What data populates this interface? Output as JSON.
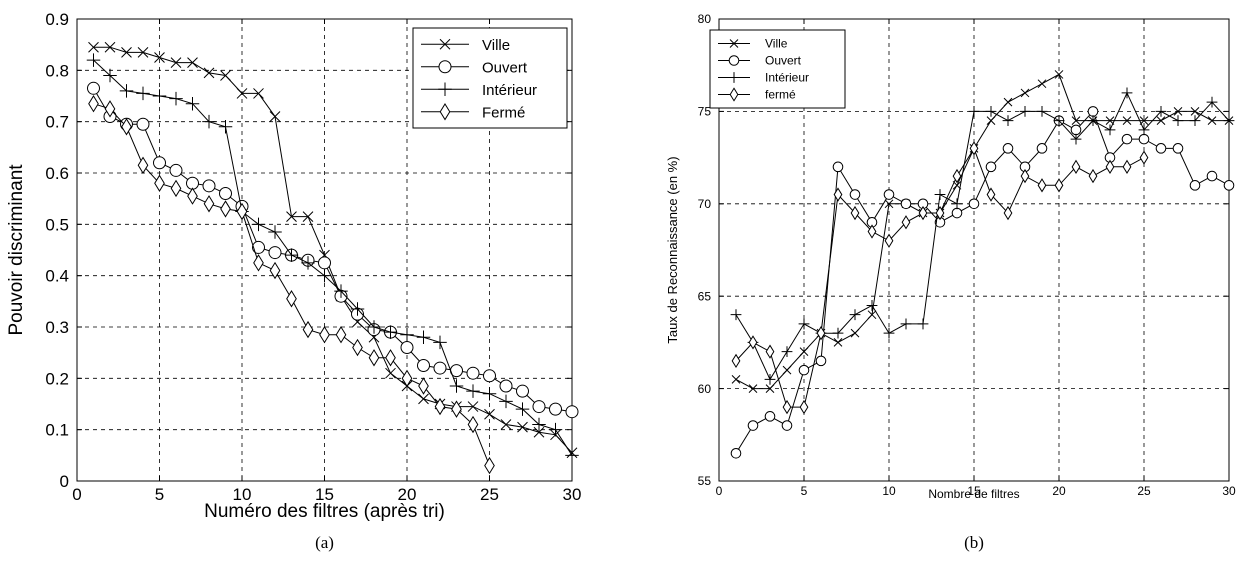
{
  "chart_data": [
    {
      "type": "line",
      "caption": "(a)",
      "xlabel": "Numéro des filtres (après tri)",
      "ylabel": "Pouvoir discriminant",
      "xlim": [
        0,
        30
      ],
      "ylim": [
        0,
        0.9
      ],
      "xticks": [
        "0",
        "5",
        "10",
        "15",
        "20",
        "25",
        "30"
      ],
      "yticks": [
        "0",
        "0.1",
        "0.2",
        "0.3",
        "0.4",
        "0.5",
        "0.6",
        "0.7",
        "0.8",
        "0.9"
      ],
      "grid": true,
      "legend_position": "top-right",
      "series": [
        {
          "name": "Ville",
          "marker": "x",
          "x": [
            1,
            2,
            3,
            4,
            5,
            6,
            7,
            8,
            9,
            10,
            11,
            12,
            13,
            14,
            15,
            16,
            17,
            18,
            19,
            20,
            21,
            22,
            23,
            24,
            25,
            26,
            27,
            28,
            29,
            30
          ],
          "y": [
            0.845,
            0.845,
            0.835,
            0.835,
            0.825,
            0.815,
            0.815,
            0.795,
            0.79,
            0.755,
            0.755,
            0.71,
            0.515,
            0.515,
            0.44,
            0.36,
            0.31,
            0.28,
            0.21,
            0.185,
            0.16,
            0.15,
            0.145,
            0.145,
            0.13,
            0.11,
            0.105,
            0.095,
            0.09,
            0.055
          ]
        },
        {
          "name": "Ouvert",
          "marker": "o",
          "x": [
            1,
            2,
            3,
            4,
            5,
            6,
            7,
            8,
            9,
            10,
            11,
            12,
            13,
            14,
            15,
            16,
            17,
            18,
            19,
            20,
            21,
            22,
            23,
            24,
            25,
            26,
            27,
            28,
            29,
            30
          ],
          "y": [
            0.765,
            0.71,
            0.695,
            0.695,
            0.62,
            0.605,
            0.58,
            0.575,
            0.56,
            0.535,
            0.455,
            0.445,
            0.44,
            0.43,
            0.425,
            0.36,
            0.325,
            0.295,
            0.29,
            0.26,
            0.225,
            0.22,
            0.215,
            0.21,
            0.205,
            0.185,
            0.175,
            0.145,
            0.14,
            0.135
          ]
        },
        {
          "name": "Intérieur",
          "marker": "+",
          "x": [
            1,
            2,
            3,
            4,
            5,
            6,
            7,
            8,
            9,
            10,
            11,
            12,
            13,
            14,
            15,
            16,
            17,
            18,
            19,
            20,
            21,
            22,
            23,
            24,
            25,
            26,
            27,
            28,
            29,
            30
          ],
          "y": [
            0.82,
            0.79,
            0.76,
            0.755,
            0.75,
            0.745,
            0.735,
            0.7,
            0.69,
            0.525,
            0.5,
            0.485,
            0.44,
            0.425,
            0.4,
            0.37,
            0.335,
            0.3,
            0.29,
            0.285,
            0.28,
            0.27,
            0.185,
            0.175,
            0.17,
            0.155,
            0.14,
            0.11,
            0.1,
            0.05
          ]
        },
        {
          "name": "Fermé",
          "marker": "d",
          "x": [
            1,
            2,
            3,
            4,
            5,
            6,
            7,
            8,
            9,
            10,
            11,
            12,
            13,
            14,
            15,
            16,
            17,
            18,
            19,
            20,
            21,
            22,
            23,
            24,
            25
          ],
          "y": [
            0.735,
            0.725,
            0.69,
            0.615,
            0.58,
            0.57,
            0.555,
            0.54,
            0.53,
            0.525,
            0.425,
            0.41,
            0.355,
            0.295,
            0.285,
            0.285,
            0.26,
            0.24,
            0.24,
            0.2,
            0.185,
            0.145,
            0.14,
            0.11,
            0.03
          ]
        }
      ]
    },
    {
      "type": "line",
      "caption": "(b)",
      "xlabel": "Nombre de filtres",
      "ylabel": "Taux de Reconnaissance (en %)",
      "xlim": [
        0,
        30
      ],
      "ylim": [
        55,
        80
      ],
      "xticks": [
        "0",
        "5",
        "10",
        "15",
        "20",
        "25",
        "30"
      ],
      "yticks": [
        "55",
        "60",
        "65",
        "70",
        "75",
        "80"
      ],
      "grid": true,
      "legend_position": "top-left",
      "series": [
        {
          "name": "Ville",
          "marker": "x",
          "x": [
            1,
            2,
            3,
            4,
            5,
            6,
            7,
            8,
            9,
            10,
            11,
            12,
            13,
            14,
            15,
            16,
            17,
            18,
            19,
            20,
            21,
            22,
            23,
            24,
            25,
            26,
            27,
            28,
            29,
            30
          ],
          "y": [
            60.5,
            60,
            60,
            61,
            62,
            63,
            62.5,
            63,
            64,
            70,
            70,
            69.5,
            69.5,
            71,
            73,
            74.5,
            75.5,
            76,
            76.5,
            77,
            74.5,
            74.5,
            74.5,
            74.5,
            74.5,
            74.5,
            75,
            75,
            74.5,
            74.5
          ]
        },
        {
          "name": "Ouvert",
          "marker": "o",
          "x": [
            1,
            2,
            3,
            4,
            5,
            6,
            7,
            8,
            9,
            10,
            11,
            12,
            13,
            14,
            15,
            16,
            17,
            18,
            19,
            20,
            21,
            22,
            23,
            24,
            25,
            26,
            27,
            28,
            29,
            30
          ],
          "y": [
            56.5,
            58,
            58.5,
            58,
            61,
            61.5,
            72,
            70.5,
            69,
            70.5,
            70,
            70,
            69,
            69.5,
            70,
            72,
            73,
            72,
            73,
            74.5,
            74,
            75,
            72.5,
            73.5,
            73.5,
            73,
            73,
            71,
            71.5,
            71
          ]
        },
        {
          "name": "Intérieur",
          "marker": "+",
          "x": [
            1,
            2,
            3,
            4,
            5,
            6,
            7,
            8,
            9,
            10,
            11,
            12,
            13,
            14,
            15,
            16,
            17,
            18,
            19,
            20,
            21,
            22,
            23,
            24,
            25,
            26,
            27,
            28,
            29,
            30
          ],
          "y": [
            64,
            62.5,
            60.5,
            62,
            63.5,
            63,
            63,
            64,
            64.5,
            63,
            63.5,
            63.5,
            70.5,
            70,
            75,
            75,
            74.5,
            75,
            75,
            74.5,
            73.5,
            74.5,
            74,
            76,
            74,
            75,
            74.5,
            74.5,
            75.5,
            74.5
          ]
        },
        {
          "name": "fermé",
          "marker": "d",
          "x": [
            1,
            2,
            3,
            4,
            5,
            6,
            7,
            8,
            9,
            10,
            11,
            12,
            13,
            14,
            15,
            16,
            17,
            18,
            19,
            20,
            21,
            22,
            23,
            24,
            25
          ],
          "y": [
            61.5,
            62.5,
            62,
            59,
            59,
            63,
            70.5,
            69.5,
            68.5,
            68,
            69,
            69.5,
            69.5,
            71.5,
            73,
            70.5,
            69.5,
            71.5,
            71,
            71,
            72,
            71.5,
            72,
            72,
            72.5
          ]
        }
      ]
    }
  ]
}
